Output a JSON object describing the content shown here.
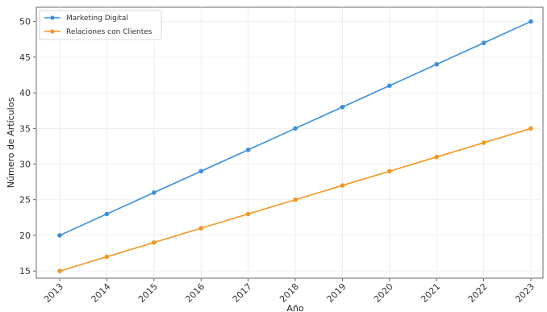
{
  "chart_data": {
    "type": "line",
    "title": "",
    "xlabel": "Año",
    "ylabel": "Número de Artículos",
    "categories": [
      "2013",
      "2014",
      "2015",
      "2016",
      "2017",
      "2018",
      "2019",
      "2020",
      "2021",
      "2022",
      "2023"
    ],
    "ylim": [
      14,
      52
    ],
    "yticks": [
      15,
      20,
      25,
      30,
      35,
      40,
      45,
      50
    ],
    "grid": true,
    "legend_position": "upper-left",
    "series": [
      {
        "name": "Marketing Digital",
        "color": "#3a8fdf",
        "values": [
          20,
          23,
          26,
          29,
          32,
          35,
          38,
          41,
          44,
          47,
          50
        ]
      },
      {
        "name": "Relaciones con Clientes",
        "color": "#f3961e",
        "values": [
          15,
          17,
          19,
          21,
          23,
          25,
          27,
          29,
          31,
          33,
          35
        ]
      }
    ]
  }
}
